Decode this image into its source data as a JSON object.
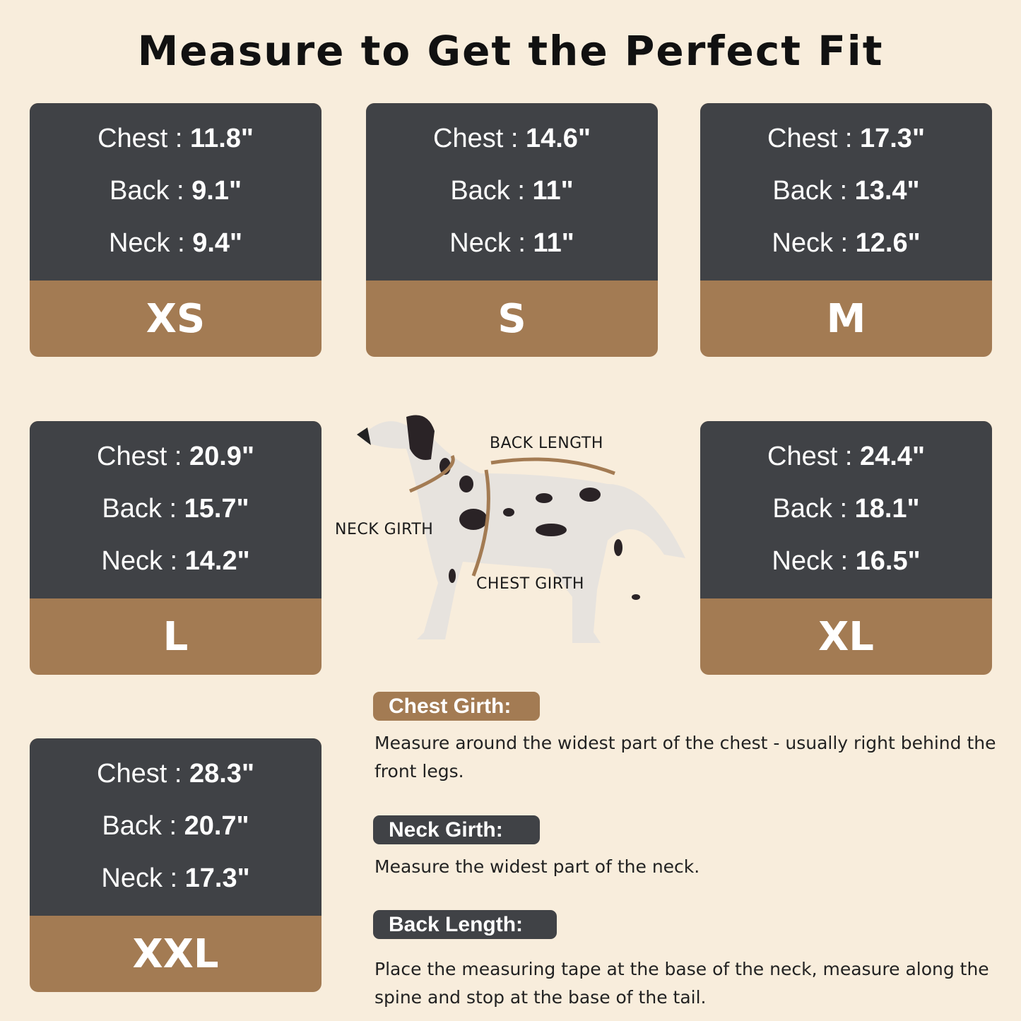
{
  "title": "Measure to Get the Perfect Fit",
  "colors": {
    "background": "#f8eddc",
    "card_dark": "#404246",
    "accent_brown": "#a37b53"
  },
  "sizes": [
    {
      "size": "XS",
      "chest_label": "Chest : ",
      "chest": "11.8\"",
      "back_label": "Back : ",
      "back": "9.1\"",
      "neck_label": "Neck : ",
      "neck": "9.4\""
    },
    {
      "size": "S",
      "chest_label": "Chest : ",
      "chest": "14.6\"",
      "back_label": "Back : ",
      "back": "11\"",
      "neck_label": "Neck : ",
      "neck": "11\""
    },
    {
      "size": "M",
      "chest_label": "Chest : ",
      "chest": "17.3\"",
      "back_label": "Back : ",
      "back": "13.4\"",
      "neck_label": "Neck : ",
      "neck": "12.6\""
    },
    {
      "size": "L",
      "chest_label": "Chest : ",
      "chest": "20.9\"",
      "back_label": "Back : ",
      "back": "15.7\"",
      "neck_label": "Neck : ",
      "neck": "14.2\""
    },
    {
      "size": "XL",
      "chest_label": "Chest : ",
      "chest": "24.4\"",
      "back_label": "Back : ",
      "back": "18.1\"",
      "neck_label": "Neck : ",
      "neck": "16.5\""
    },
    {
      "size": "XXL",
      "chest_label": "Chest : ",
      "chest": "28.3\"",
      "back_label": "Back : ",
      "back": "20.7\"",
      "neck_label": "Neck : ",
      "neck": "17.3\""
    }
  ],
  "diagram": {
    "back_length": "BACK LENGTH",
    "neck_girth": "NECK GIRTH",
    "chest_girth": "CHEST GIRTH",
    "icon": "dalmatian-dog-illustration"
  },
  "guide": [
    {
      "label": "Chest Girth:",
      "text": "Measure around the widest part of the chest - usually right behind the front legs."
    },
    {
      "label": "Neck Girth:",
      "text": "Measure the widest part of the neck."
    },
    {
      "label": "Back Length:",
      "text": "Place the measuring tape at the base of the neck, measure along the spine and stop at the base of the tail."
    }
  ]
}
